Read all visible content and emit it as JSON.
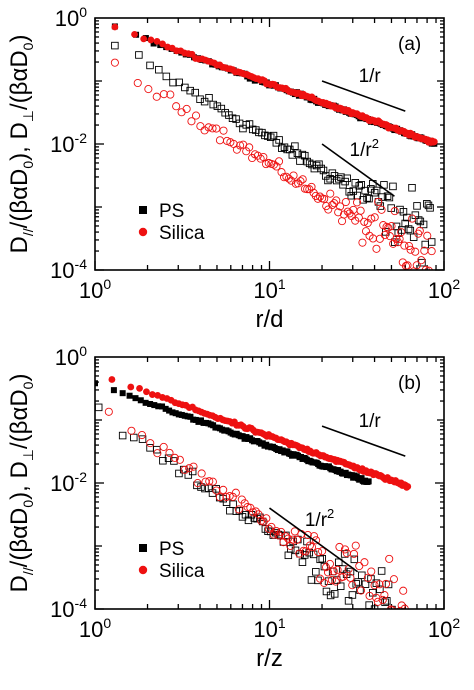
{
  "chart_data": [
    {
      "panel_label": "(a)",
      "type": "scatter",
      "xscale": "log",
      "yscale": "log",
      "xlim": [
        1,
        100
      ],
      "ylim": [
        0.0001,
        1
      ],
      "xlabel_base": "r/d",
      "x_ticks": [
        {
          "v": 1,
          "base": "10",
          "exp": "0"
        },
        {
          "v": 10,
          "base": "10",
          "exp": "1"
        },
        {
          "v": 100,
          "base": "10",
          "exp": "2"
        }
      ],
      "y_ticks": [
        {
          "v": 1,
          "base": "10",
          "exp": "0"
        },
        {
          "v": 0.01,
          "base": "10",
          "exp": "-2"
        },
        {
          "v": 0.0001,
          "base": "10",
          "exp": "-4"
        }
      ],
      "ylabel_parts": [
        "D",
        "//",
        "/(βαD",
        "0",
        "), D",
        "⊥",
        "/(βαD",
        "0",
        ")"
      ],
      "legend": [
        {
          "name": "PS",
          "color": "#000000",
          "marker": "square"
        },
        {
          "name": "Silica",
          "color": "#ee1111",
          "marker": "circle"
        }
      ],
      "series": [
        {
          "name": "PS parallel",
          "color": "#000000",
          "marker": "filled-square",
          "model": {
            "a": 0.9,
            "p": 1.0,
            "x_start": 1.3,
            "x_end": 88,
            "n": 140,
            "noise": 0.02
          }
        },
        {
          "name": "Silica parallel",
          "color": "#ee1111",
          "marker": "filled-circle",
          "model": {
            "a": 0.92,
            "p": 1.0,
            "x_start": 1.3,
            "x_end": 88,
            "n": 160,
            "noise": 0.02
          }
        },
        {
          "name": "PS perpendicular",
          "color": "#000000",
          "marker": "open-square",
          "model": {
            "a": 0.55,
            "p": 1.65,
            "x_start": 1.3,
            "x_end": 85,
            "n": 110,
            "noise": 0.09,
            "noise_tail": 0.45,
            "tail_from": 20
          }
        },
        {
          "name": "Silica perpendicular",
          "color": "#ee1111",
          "marker": "open-circle",
          "model": {
            "a": 0.27,
            "p": 1.75,
            "x_start": 1.3,
            "x_end": 85,
            "n": 120,
            "noise": 0.09,
            "noise_tail": 0.5,
            "tail_from": 20
          }
        }
      ],
      "guides": [
        {
          "label_base": "1/r",
          "label_exp": "",
          "x1": 20,
          "y1": 0.1,
          "x2": 60,
          "y2": 0.0333
        },
        {
          "label_base": "1/r",
          "label_exp": "2",
          "x1": 20,
          "y1": 0.01,
          "x2": 52,
          "y2": 0.00148
        }
      ]
    },
    {
      "panel_label": "(b)",
      "type": "scatter",
      "xscale": "log",
      "yscale": "log",
      "xlim": [
        1,
        100
      ],
      "ylim": [
        0.0001,
        1
      ],
      "xlabel_base": "r/z",
      "x_ticks": [
        {
          "v": 1,
          "base": "10",
          "exp": "0"
        },
        {
          "v": 10,
          "base": "10",
          "exp": "1"
        },
        {
          "v": 100,
          "base": "10",
          "exp": "2"
        }
      ],
      "y_ticks": [
        {
          "v": 1,
          "base": "10",
          "exp": "0"
        },
        {
          "v": 0.01,
          "base": "10",
          "exp": "-2"
        },
        {
          "v": 0.0001,
          "base": "10",
          "exp": "-4"
        }
      ],
      "ylabel_parts": [
        "D",
        "//",
        "/(βαD",
        "0",
        "), D",
        "⊥",
        "/(βαD",
        "0",
        ")"
      ],
      "legend": [
        {
          "name": "PS",
          "color": "#000000",
          "marker": "square"
        },
        {
          "name": "Silica",
          "color": "#ee1111",
          "marker": "circle"
        }
      ],
      "series": [
        {
          "name": "PS parallel",
          "color": "#000000",
          "marker": "filled-square",
          "model": {
            "a": 0.38,
            "p": 1.0,
            "x_start": 1.0,
            "x_end": 37,
            "n": 130,
            "noise": 0.02
          }
        },
        {
          "name": "Silica parallel",
          "color": "#ee1111",
          "marker": "filled-circle",
          "model": {
            "a": 0.55,
            "p": 1.0,
            "x_start": 1.25,
            "x_end": 62,
            "n": 150,
            "noise": 0.02
          }
        },
        {
          "name": "PS perpendicular",
          "color": "#000000",
          "marker": "open-square",
          "model": {
            "a": 0.14,
            "p": 1.9,
            "x_start": 1.05,
            "x_end": 55,
            "n": 100,
            "noise": 0.1,
            "noise_tail": 0.45,
            "tail_from": 10
          }
        },
        {
          "name": "Silica perpendicular",
          "color": "#ee1111",
          "marker": "open-circle",
          "model": {
            "a": 0.18,
            "p": 1.9,
            "x_start": 1.2,
            "x_end": 62,
            "n": 110,
            "noise": 0.1,
            "noise_tail": 0.5,
            "tail_from": 10
          }
        }
      ],
      "guides": [
        {
          "label_base": "1/r",
          "label_exp": "",
          "x1": 20,
          "y1": 0.08,
          "x2": 60,
          "y2": 0.0267
        },
        {
          "label_base": "1/r",
          "label_exp": "2",
          "x1": 10,
          "y1": 0.004,
          "x2": 32,
          "y2": 0.00039
        }
      ]
    }
  ]
}
